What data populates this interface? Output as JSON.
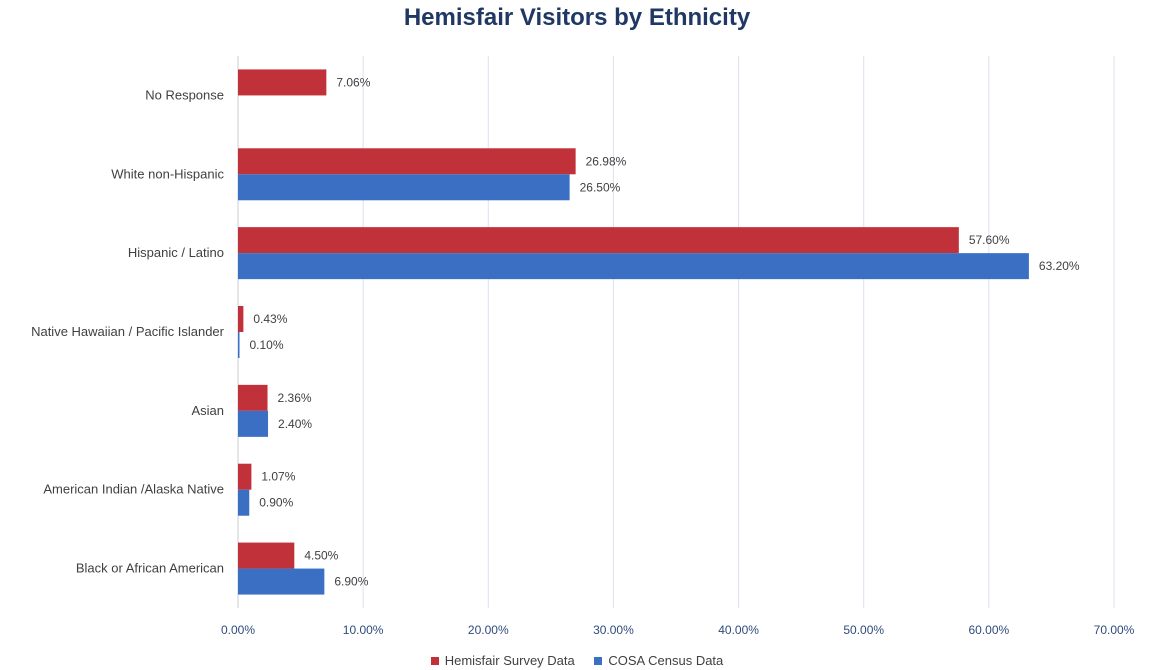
{
  "chart_data": {
    "type": "bar",
    "orientation": "horizontal",
    "title": "Hemisfair Visitors  by Ethnicity",
    "categories": [
      "No Response",
      "White non-Hispanic",
      "Hispanic / Latino",
      "Native Hawaiian / Pacific Islander",
      "Asian",
      "American Indian /Alaska Native",
      "Black or African American"
    ],
    "series": [
      {
        "name": "Hemisfair Survey Data",
        "color": "#c0313a",
        "values": [
          7.06,
          26.98,
          57.6,
          0.43,
          2.36,
          1.07,
          4.5
        ],
        "labels": [
          "7.06%",
          "26.98%",
          "57.60%",
          "0.43%",
          "2.36%",
          "1.07%",
          "4.50%"
        ]
      },
      {
        "name": "COSA Census Data",
        "color": "#3a6fc4",
        "values": [
          null,
          26.5,
          63.2,
          0.1,
          2.4,
          0.9,
          6.9
        ],
        "labels": [
          null,
          "26.50%",
          "63.20%",
          "0.10%",
          "2.40%",
          "0.90%",
          "6.90%"
        ]
      }
    ],
    "xlim": [
      0,
      70
    ],
    "xticks": [
      "0.00%",
      "10.00%",
      "20.00%",
      "30.00%",
      "40.00%",
      "50.00%",
      "60.00%",
      "70.00%"
    ],
    "grid": true,
    "legend_position": "bottom"
  }
}
